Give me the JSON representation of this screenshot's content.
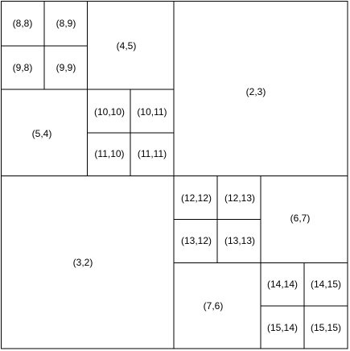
{
  "cells": [
    "(8,8)",
    "(8,9)",
    "(9,8)",
    "(9,9)",
    "(4,5)",
    "(5,4)",
    "(10,10)",
    "(10,11)",
    "(11,10)",
    "(11,11)",
    "(2,3)",
    "(3,2)",
    "(12,12)",
    "(12,13)",
    "(13,12)",
    "(13,13)",
    "(6,7)",
    "(7,6)",
    "(14,14)",
    "(14,15)",
    "(15,14)",
    "(15,15)"
  ]
}
